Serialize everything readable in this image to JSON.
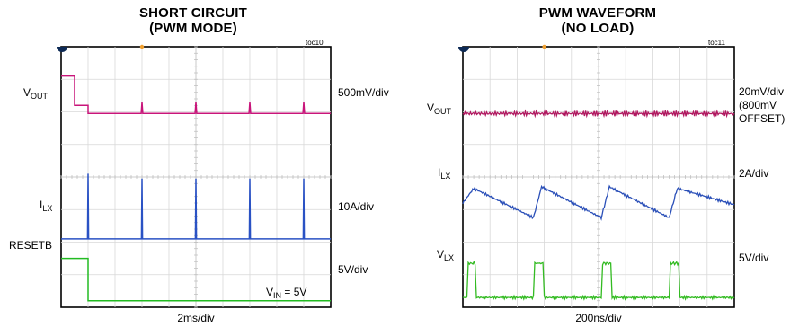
{
  "chart_data": [
    {
      "type": "line",
      "title": "SHORT CIRCUIT",
      "subtitle": "(PWM MODE)",
      "figure_id": "toc10",
      "xlabel": "2ms/div",
      "annotation": {
        "main": "V",
        "sub": "IN",
        "rest": " = 5V"
      },
      "x_divisions": 10,
      "y_divisions": 8,
      "series": [
        {
          "name": {
            "main": "V",
            "sub": "OUT"
          },
          "scale": "500mV/div",
          "color": "#c8157a",
          "x": [
            0,
            0.5,
            0.5,
            1.0,
            1.0,
            1.02,
            2.97,
            3.0,
            3.03,
            4.97,
            5.0,
            5.03,
            6.97,
            7.0,
            7.03,
            8.97,
            9.0,
            9.03,
            10
          ],
          "y": [
            7.1,
            7.1,
            6.2,
            6.2,
            5.95,
            5.95,
            5.95,
            6.3,
            5.95,
            5.95,
            6.3,
            5.95,
            5.95,
            6.3,
            5.95,
            5.95,
            6.3,
            5.95,
            5.95
          ]
        },
        {
          "name": {
            "main": "I",
            "sub": "LX"
          },
          "scale": "10A/div",
          "color": "#2a52c4",
          "x": [
            0,
            0.98,
            1.0,
            1.02,
            2.98,
            3.0,
            3.02,
            4.98,
            5.0,
            5.02,
            6.98,
            7.0,
            7.02,
            8.98,
            9.0,
            9.02,
            10
          ],
          "y": [
            2.1,
            2.1,
            4.1,
            2.1,
            2.1,
            3.95,
            2.1,
            2.1,
            3.95,
            2.1,
            2.1,
            3.95,
            2.1,
            2.1,
            3.95,
            2.1,
            2.1
          ]
        },
        {
          "name": {
            "main": "RESETB",
            "sub": ""
          },
          "scale": "5V/div",
          "color": "#22bb22",
          "x": [
            0,
            1.0,
            1.0,
            10
          ],
          "y": [
            1.5,
            1.5,
            0.2,
            0.2
          ]
        }
      ]
    },
    {
      "type": "line",
      "title": "PWM WAVEFORM",
      "subtitle": "(NO LOAD)",
      "figure_id": "toc11",
      "xlabel": "200ns/div",
      "x_divisions": 10,
      "y_divisions": 8,
      "series": [
        {
          "name": {
            "main": "V",
            "sub": "OUT"
          },
          "scale": "20mV/div",
          "scale_extra": [
            "(800mV",
            "OFFSET)"
          ],
          "color": "#b0175f",
          "x": [
            0,
            10
          ],
          "y": [
            5.95,
            5.95
          ]
        },
        {
          "name": {
            "main": "I",
            "sub": "LX"
          },
          "scale": "2A/div",
          "color": "#2a4fb8",
          "x": [
            0,
            0.4,
            2.6,
            2.9,
            5.1,
            5.4,
            7.6,
            7.9,
            10
          ],
          "y": [
            3.2,
            3.65,
            2.75,
            3.7,
            2.75,
            3.7,
            2.75,
            3.65,
            3.15
          ]
        },
        {
          "name": {
            "main": "V",
            "sub": "LX"
          },
          "scale": "5V/div",
          "color": "#33bb22",
          "x": [
            0,
            0.15,
            0.2,
            0.45,
            0.5,
            2.6,
            2.65,
            2.95,
            3.0,
            5.1,
            5.15,
            5.45,
            5.5,
            7.6,
            7.65,
            7.95,
            8.0,
            10.0
          ],
          "y": [
            0.3,
            0.3,
            1.35,
            1.35,
            0.3,
            0.3,
            1.35,
            1.35,
            0.3,
            0.3,
            1.35,
            1.35,
            0.3,
            0.3,
            1.35,
            1.35,
            0.3,
            0.3
          ]
        }
      ]
    }
  ]
}
